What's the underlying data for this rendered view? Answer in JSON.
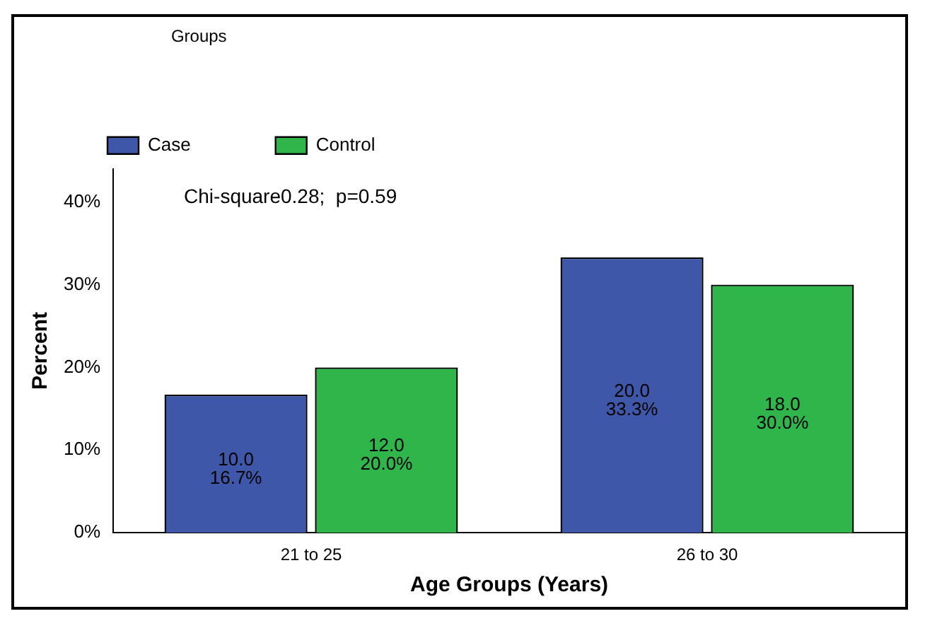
{
  "chart_data": {
    "type": "bar",
    "xlabel": "Age Groups (Years)",
    "ylabel": "Percent",
    "legend_title": "Groups",
    "legend": "top left",
    "grid": false,
    "categories": [
      "21 to 25",
      "26 to 30"
    ],
    "series": [
      {
        "name": "Case",
        "color": "#3f57a8",
        "values": [
          16.7,
          33.3
        ],
        "value_labels": [
          "10.0\n16.7%",
          "20.0\n33.3%"
        ]
      },
      {
        "name": "Control",
        "color": "#2fb54a",
        "values": [
          20.0,
          30.0
        ],
        "value_labels": [
          "12.0\n20.0%",
          "18.0\n30.0%"
        ]
      }
    ],
    "ylim": [
      0,
      44
    ],
    "yticks": [
      {
        "value": 0,
        "label": "0%"
      },
      {
        "value": 10,
        "label": "10%"
      },
      {
        "value": 20,
        "label": "20%"
      },
      {
        "value": 30,
        "label": "30%"
      },
      {
        "value": 40,
        "label": "40%"
      }
    ],
    "annotations": [
      "Chi-square0.28;  p=0.59"
    ]
  }
}
